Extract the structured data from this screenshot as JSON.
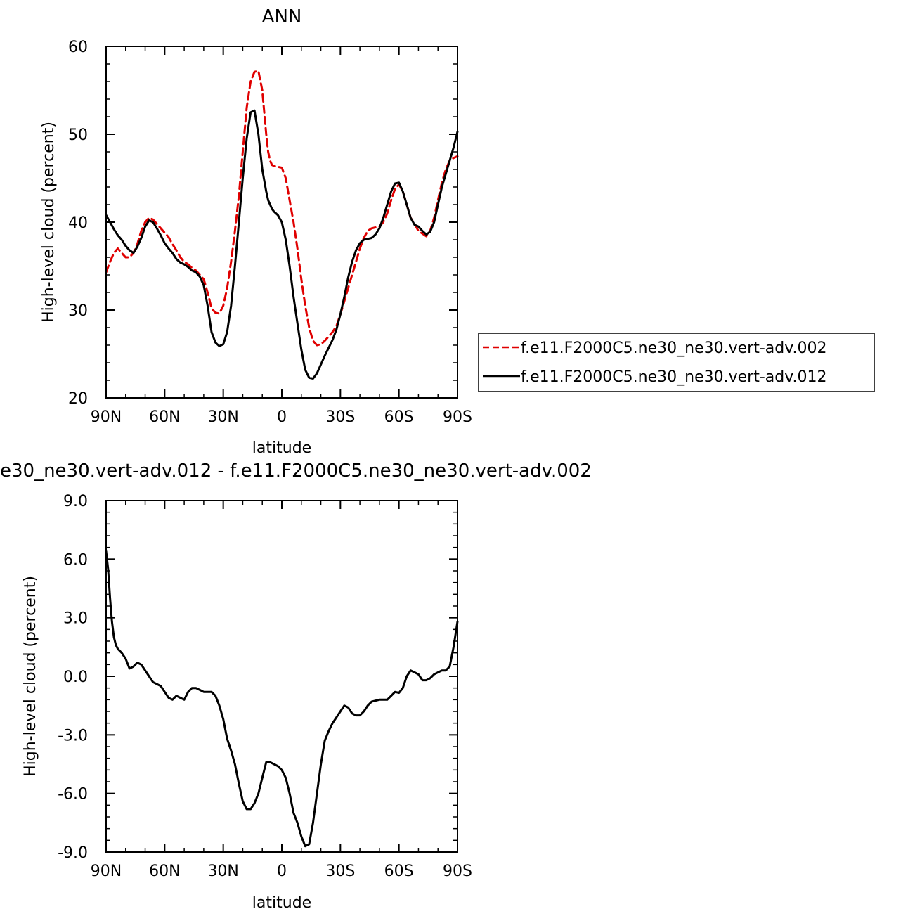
{
  "chart_data": [
    {
      "type": "line",
      "title": "ANN",
      "xlabel": "latitude",
      "ylabel": "High-level cloud (percent)",
      "xlim": [
        90,
        -90
      ],
      "ylim": [
        20,
        60
      ],
      "x_ticks": [
        90,
        60,
        30,
        0,
        -30,
        -60,
        -90
      ],
      "x_tick_labels": [
        "90N",
        "60N",
        "30N",
        "0",
        "30S",
        "60S",
        "90S"
      ],
      "y_ticks": [
        20,
        30,
        40,
        50,
        60
      ],
      "y_tick_labels": [
        "20",
        "30",
        "40",
        "50",
        "60"
      ],
      "grid": false,
      "legend": "right",
      "series": [
        {
          "name": "f.e11.F2000C5.ne30_ne30.vert-adv.002",
          "color": "#e00000",
          "dash": "dashed",
          "x": [
            90,
            88,
            86,
            84,
            82,
            80,
            78,
            76,
            74,
            72,
            70,
            68,
            66,
            64,
            62,
            60,
            58,
            56,
            54,
            52,
            50,
            48,
            46,
            44,
            42,
            40,
            38,
            36,
            34,
            32,
            30,
            28,
            26,
            24,
            22,
            20,
            18,
            16,
            14,
            12,
            10,
            8,
            7,
            6,
            5,
            4,
            2,
            0,
            -2,
            -4,
            -6,
            -8,
            -10,
            -12,
            -14,
            -16,
            -18,
            -20,
            -22,
            -24,
            -26,
            -28,
            -30,
            -32,
            -34,
            -36,
            -38,
            -40,
            -42,
            -44,
            -46,
            -48,
            -50,
            -52,
            -54,
            -56,
            -58,
            -60,
            -62,
            -64,
            -66,
            -68,
            -70,
            -72,
            -74,
            -76,
            -78,
            -80,
            -82,
            -84,
            -86,
            -88,
            -90
          ],
          "y": [
            34.3,
            35.5,
            36.5,
            37.0,
            36.5,
            36.0,
            36.0,
            36.5,
            37.5,
            39.0,
            40.0,
            40.5,
            40.3,
            39.8,
            39.3,
            38.8,
            38.3,
            37.5,
            36.8,
            36.0,
            35.5,
            35.2,
            34.8,
            34.5,
            34.0,
            33.5,
            32.0,
            30.2,
            29.7,
            29.6,
            30.5,
            32.5,
            35.5,
            39.0,
            43.0,
            48.0,
            53.0,
            56.0,
            57.1,
            57.2,
            55.0,
            50.0,
            48.0,
            47.0,
            46.5,
            46.4,
            46.3,
            46.2,
            45.0,
            42.5,
            40.0,
            37.0,
            33.5,
            30.5,
            28.0,
            26.5,
            26.0,
            26.1,
            26.5,
            27.0,
            27.5,
            28.2,
            29.5,
            31.0,
            32.5,
            34.0,
            35.5,
            37.0,
            38.2,
            39.0,
            39.3,
            39.4,
            39.5,
            40.0,
            41.0,
            42.5,
            43.8,
            44.3,
            43.5,
            42.0,
            40.5,
            39.8,
            39.0,
            38.7,
            38.4,
            39.0,
            40.5,
            42.5,
            44.5,
            46.0,
            47.0,
            47.3,
            47.5
          ]
        },
        {
          "name": "f.e11.F2000C5.ne30_ne30.vert-adv.012",
          "color": "#000000",
          "dash": "solid",
          "x": [
            90,
            88,
            86,
            84,
            82,
            80,
            78,
            76,
            74,
            72,
            70,
            68,
            66,
            64,
            62,
            60,
            58,
            56,
            54,
            52,
            50,
            48,
            46,
            44,
            42,
            40,
            38,
            36,
            34,
            32,
            30,
            28,
            26,
            24,
            22,
            20,
            18,
            16,
            14,
            12,
            10,
            8,
            7,
            6,
            5,
            4,
            2,
            0,
            -2,
            -4,
            -6,
            -8,
            -10,
            -12,
            -14,
            -16,
            -18,
            -20,
            -22,
            -24,
            -26,
            -28,
            -30,
            -32,
            -34,
            -36,
            -38,
            -40,
            -42,
            -44,
            -46,
            -48,
            -50,
            -52,
            -54,
            -56,
            -58,
            -60,
            -62,
            -64,
            -66,
            -68,
            -70,
            -72,
            -74,
            -76,
            -78,
            -80,
            -82,
            -84,
            -86,
            -88,
            -90
          ],
          "y": [
            40.8,
            40.0,
            39.2,
            38.5,
            38.0,
            37.3,
            36.8,
            36.5,
            37.2,
            38.2,
            39.5,
            40.2,
            40.0,
            39.3,
            38.5,
            37.6,
            37.0,
            36.5,
            35.8,
            35.4,
            35.2,
            34.9,
            34.5,
            34.3,
            33.8,
            32.8,
            30.5,
            27.5,
            26.3,
            25.9,
            26.1,
            27.5,
            30.5,
            35.0,
            40.0,
            45.0,
            49.5,
            52.5,
            52.7,
            50.0,
            46.0,
            43.5,
            42.5,
            42.0,
            41.5,
            41.2,
            40.8,
            40.0,
            38.0,
            35.0,
            31.5,
            28.5,
            25.5,
            23.2,
            22.3,
            22.2,
            22.8,
            23.8,
            24.8,
            25.7,
            26.6,
            27.8,
            29.5,
            31.5,
            33.7,
            35.5,
            36.8,
            37.6,
            38.0,
            38.1,
            38.2,
            38.6,
            39.3,
            40.5,
            42.0,
            43.5,
            44.4,
            44.5,
            43.5,
            42.0,
            40.5,
            39.7,
            39.5,
            39.0,
            38.6,
            38.9,
            40.0,
            42.0,
            44.0,
            45.5,
            47.0,
            48.5,
            50.3
          ]
        }
      ]
    },
    {
      "type": "line",
      "title": "e30_ne30.vert-adv.012 - f.e11.F2000C5.ne30_ne30.vert-adv.002",
      "xlabel": "latitude",
      "ylabel": "High-level cloud (percent)",
      "xlim": [
        90,
        -90
      ],
      "ylim": [
        -9.0,
        9.0
      ],
      "x_ticks": [
        90,
        60,
        30,
        0,
        -30,
        -60,
        -90
      ],
      "x_tick_labels": [
        "90N",
        "60N",
        "30N",
        "0",
        "30S",
        "60S",
        "90S"
      ],
      "y_ticks": [
        -9.0,
        -6.0,
        -3.0,
        0.0,
        3.0,
        6.0,
        9.0
      ],
      "y_tick_labels": [
        "-9.0",
        "-6.0",
        "-3.0",
        "0.0",
        "3.0",
        "6.0",
        "9.0"
      ],
      "grid": false,
      "series": [
        {
          "color": "#000000",
          "dash": "solid",
          "x": [
            90,
            89,
            88,
            87,
            86,
            85,
            84,
            82,
            80,
            78,
            76,
            74,
            72,
            70,
            68,
            66,
            64,
            62,
            60,
            58,
            56,
            54,
            52,
            50,
            48,
            46,
            44,
            42,
            40,
            38,
            36,
            34,
            32,
            30,
            28,
            26,
            24,
            22,
            20,
            18,
            16,
            14,
            12,
            10,
            8,
            6,
            4,
            2,
            0,
            -2,
            -4,
            -6,
            -8,
            -10,
            -12,
            -14,
            -16,
            -18,
            -20,
            -22,
            -24,
            -26,
            -28,
            -30,
            -32,
            -34,
            -36,
            -38,
            -40,
            -42,
            -44,
            -46,
            -48,
            -50,
            -52,
            -54,
            -56,
            -58,
            -60,
            -62,
            -64,
            -66,
            -68,
            -70,
            -72,
            -74,
            -76,
            -78,
            -80,
            -82,
            -84,
            -86,
            -88,
            -90
          ],
          "y": [
            6.4,
            5.5,
            4.0,
            2.8,
            2.0,
            1.6,
            1.4,
            1.2,
            0.9,
            0.4,
            0.5,
            0.7,
            0.6,
            0.3,
            0.0,
            -0.3,
            -0.4,
            -0.5,
            -0.8,
            -1.1,
            -1.2,
            -1.0,
            -1.1,
            -1.2,
            -0.8,
            -0.6,
            -0.6,
            -0.7,
            -0.8,
            -0.8,
            -0.8,
            -1.0,
            -1.5,
            -2.2,
            -3.2,
            -3.8,
            -4.5,
            -5.5,
            -6.4,
            -6.8,
            -6.8,
            -6.5,
            -6.0,
            -5.2,
            -4.4,
            -4.4,
            -4.5,
            -4.6,
            -4.8,
            -5.2,
            -6.0,
            -7.0,
            -7.5,
            -8.2,
            -8.7,
            -8.6,
            -7.5,
            -6.0,
            -4.5,
            -3.3,
            -2.8,
            -2.4,
            -2.1,
            -1.8,
            -1.5,
            -1.6,
            -1.9,
            -2.0,
            -2.0,
            -1.8,
            -1.5,
            -1.3,
            -1.25,
            -1.2,
            -1.2,
            -1.2,
            -1.0,
            -0.8,
            -0.85,
            -0.6,
            0.0,
            0.3,
            0.2,
            0.1,
            -0.2,
            -0.2,
            -0.1,
            0.1,
            0.2,
            0.3,
            0.3,
            0.5,
            1.5,
            2.8
          ]
        }
      ]
    }
  ],
  "legend_entries": [
    {
      "label": "f.e11.F2000C5.ne30_ne30.vert-adv.002"
    },
    {
      "label": "f.e11.F2000C5.ne30_ne30.vert-adv.012"
    }
  ]
}
